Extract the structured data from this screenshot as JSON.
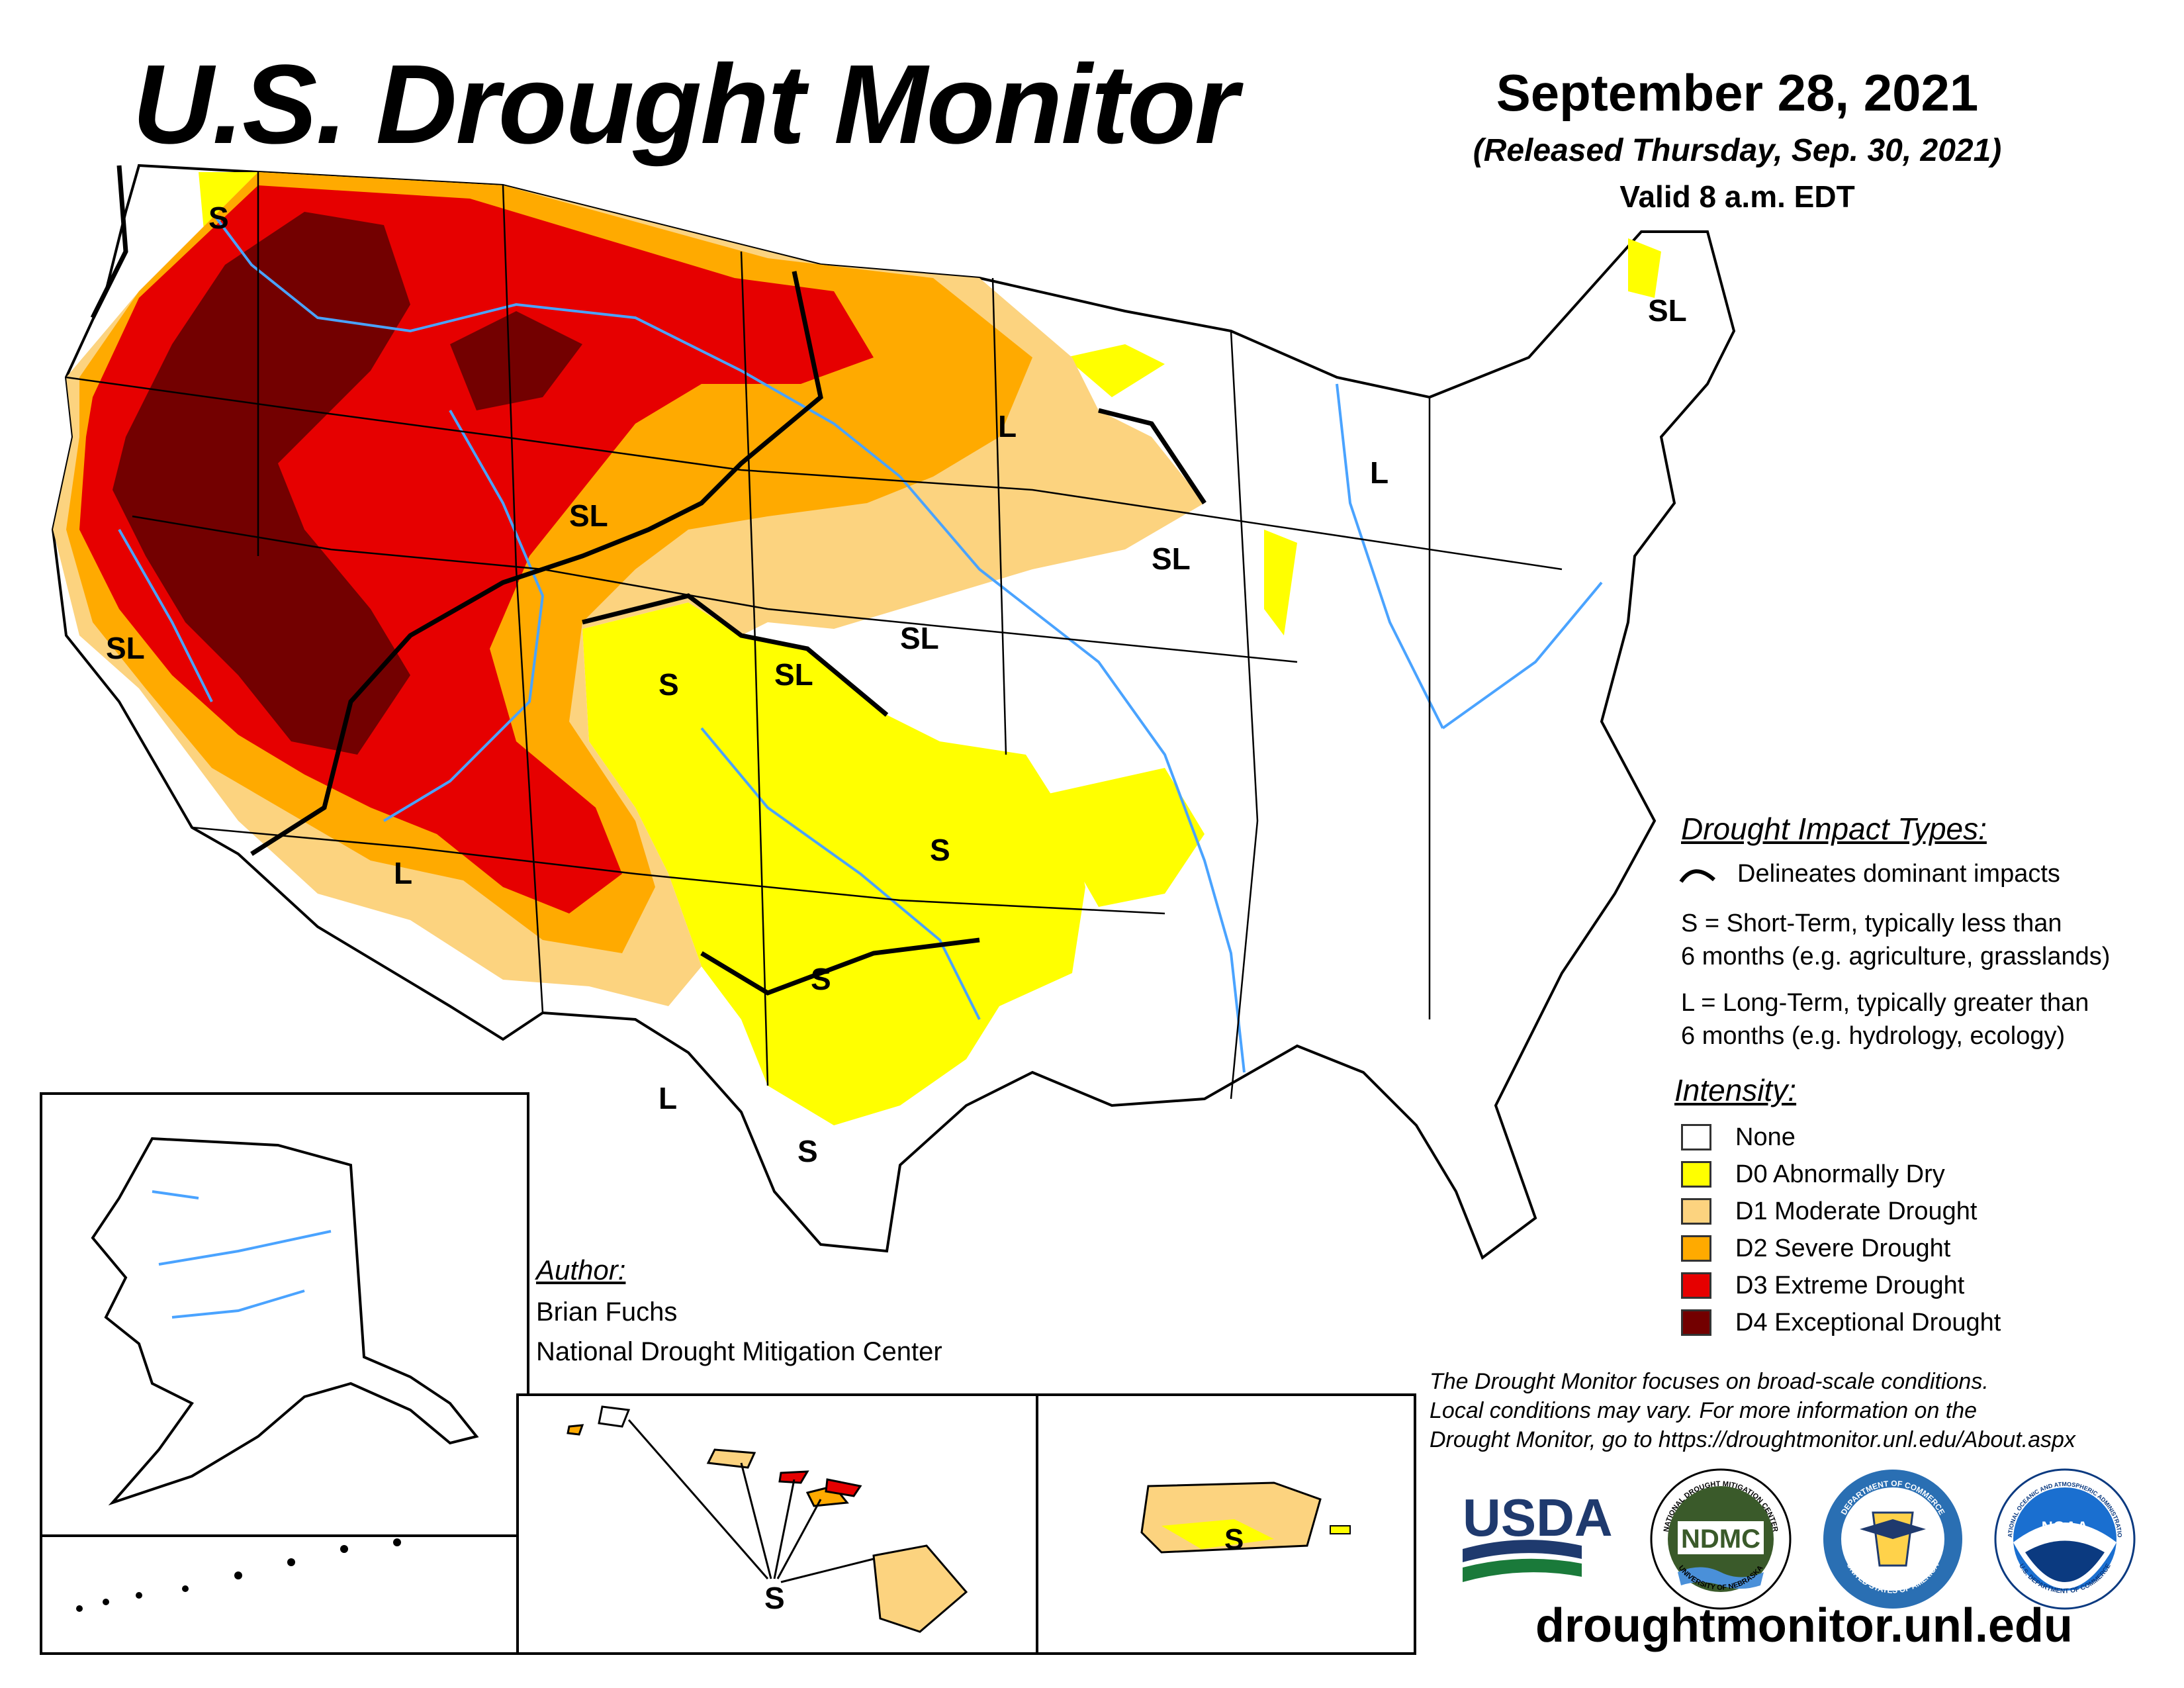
{
  "header": {
    "title": "U.S. Drought Monitor",
    "date": "September 28, 2021",
    "released": "(Released Thursday, Sep. 30, 2021)",
    "valid": "Valid 8 a.m. EDT"
  },
  "colors": {
    "none": "#ffffff",
    "d0": "#ffff00",
    "d1": "#fcd37f",
    "d2": "#ffaa00",
    "d3": "#e60000",
    "d4": "#730000",
    "border": "#000000",
    "river": "#4aa3ff"
  },
  "impact_legend": {
    "heading": "Drought Impact Types:",
    "line_label": "Delineates dominant impacts",
    "s_line1": "S = Short-Term, typically less than",
    "s_line2": "6 months (e.g. agriculture, grasslands)",
    "l_line1": "L = Long-Term, typically greater than",
    "l_line2": "6 months (e.g. hydrology, ecology)"
  },
  "intensity_legend": {
    "heading": "Intensity:",
    "items": [
      {
        "label": "None",
        "color": "#ffffff"
      },
      {
        "label": "D0 Abnormally Dry",
        "color": "#ffff00"
      },
      {
        "label": "D1 Moderate Drought",
        "color": "#fcd37f"
      },
      {
        "label": "D2 Severe Drought",
        "color": "#ffaa00"
      },
      {
        "label": "D3 Extreme Drought",
        "color": "#e60000"
      },
      {
        "label": "D4 Exceptional Drought",
        "color": "#730000"
      }
    ]
  },
  "map_labels": {
    "s_wa": "S",
    "sl_me": "SL",
    "l_nd": "L",
    "l_mi": "L",
    "sl_wy": "SL",
    "sl_wi": "SL",
    "sl_ca": "SL",
    "s_co": "S",
    "sl_ks": "SL",
    "sl_ne": "SL",
    "l_az": "L",
    "s_ok": "S",
    "s_tx": "S",
    "l_tx": "L",
    "s_stx": "S",
    "s_hi": "S",
    "s_pr": "S"
  },
  "author": {
    "heading": "Author:",
    "name": "Brian Fuchs",
    "org": "National Drought Mitigation Center"
  },
  "disclaimer": {
    "line1": "The Drought Monitor focuses on broad-scale conditions.",
    "line2": "Local conditions may vary. For more information on the",
    "line3": "Drought Monitor, go to https://droughtmonitor.unl.edu/About.aspx"
  },
  "logos": {
    "usda": "USDA",
    "ndmc": "NDMC",
    "ndmc_ring_top": "NATIONAL DROUGHT MITIGATION CENTER",
    "ndmc_ring_bottom": "UNIVERSITY OF NEBRASKA",
    "commerce_ring": "DEPARTMENT OF COMMERCE",
    "commerce_bottom": "UNITED STATES OF AMERICA",
    "noaa": "NOAA",
    "noaa_ring": "NATIONAL OCEANIC AND ATMOSPHERIC ADMINISTRATION",
    "noaa_bottom": "U.S. DEPARTMENT OF COMMERCE"
  },
  "website": "droughtmonitor.unl.edu"
}
